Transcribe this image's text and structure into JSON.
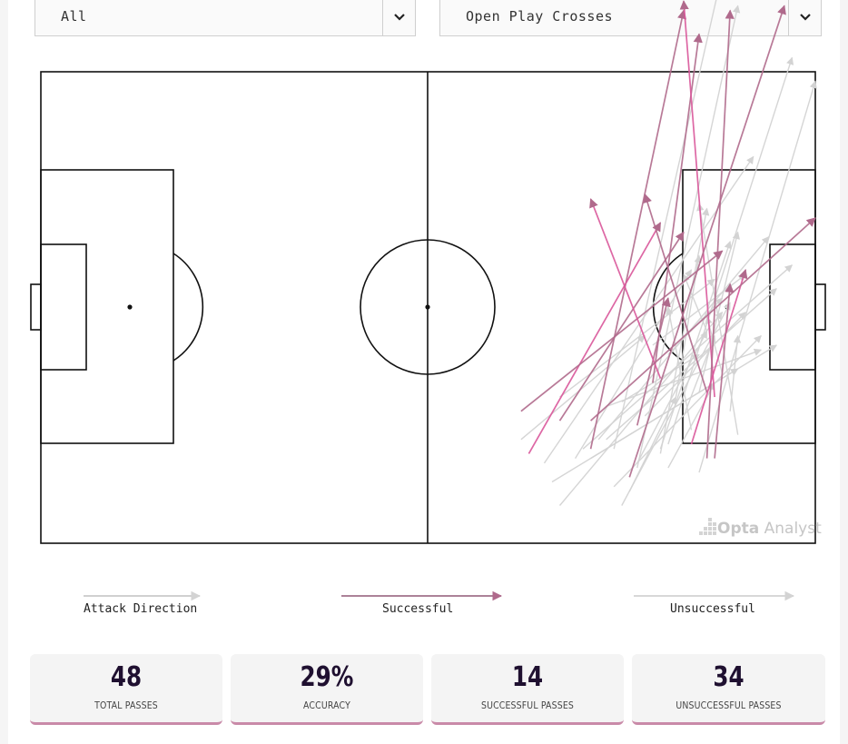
{
  "filters": {
    "left": {
      "value": "All"
    },
    "right": {
      "value": "Open Play Crosses"
    }
  },
  "legend": {
    "attack_direction": "Attack Direction",
    "successful": "Successful",
    "unsuccessful": "Unsuccessful"
  },
  "colors": {
    "successful": "#b06a8c",
    "successful_alt": "#d9569a",
    "unsuccessful": "#d3d3d3",
    "pitch_lines": "#111111",
    "accent_border": "#c98aa8"
  },
  "branding": {
    "logo_text_bold": "Opta",
    "logo_text": "Analyst"
  },
  "stats": [
    {
      "value": "48",
      "label": "TOTAL PASSES"
    },
    {
      "value": "29%",
      "label": "ACCURACY"
    },
    {
      "value": "14",
      "label": "SUCCESSFUL PASSES"
    },
    {
      "value": "34",
      "label": "UNSUCCESSFUL PASSES"
    }
  ],
  "chart_data": {
    "type": "pass-map",
    "pitch": {
      "length": 100,
      "width": 100,
      "attack_direction": "right"
    },
    "passes": [
      {
        "from": [
          71,
          80
        ],
        "to": [
          83,
          -13
        ],
        "outcome": "successful"
      },
      {
        "from": [
          79,
          66
        ],
        "to": [
          85,
          -8
        ],
        "outcome": "successful"
      },
      {
        "from": [
          87,
          69
        ],
        "to": [
          83,
          -15
        ],
        "outcome": "successful"
      },
      {
        "from": [
          86,
          82
        ],
        "to": [
          89,
          -13
        ],
        "outcome": "successful"
      },
      {
        "from": [
          76,
          86
        ],
        "to": [
          96,
          -14
        ],
        "outcome": "successful"
      },
      {
        "from": [
          63,
          81
        ],
        "to": [
          80,
          32
        ],
        "outcome": "successful"
      },
      {
        "from": [
          67,
          74
        ],
        "to": [
          83,
          34
        ],
        "outcome": "successful"
      },
      {
        "from": [
          62,
          72
        ],
        "to": [
          88,
          38
        ],
        "outcome": "successful"
      },
      {
        "from": [
          84,
          79
        ],
        "to": [
          91,
          42
        ],
        "outcome": "successful"
      },
      {
        "from": [
          86,
          68
        ],
        "to": [
          78,
          26
        ],
        "outcome": "successful"
      },
      {
        "from": [
          77,
          75
        ],
        "to": [
          81,
          48
        ],
        "outcome": "successful"
      },
      {
        "from": [
          80,
          65
        ],
        "to": [
          71,
          27
        ],
        "outcome": "successful"
      },
      {
        "from": [
          71,
          74
        ],
        "to": [
          100,
          31
        ],
        "outcome": "successful"
      },
      {
        "from": [
          87,
          82
        ],
        "to": [
          89,
          45
        ],
        "outcome": "successful"
      },
      {
        "from": [
          74,
          80
        ],
        "to": [
          88,
          -21
        ],
        "outcome": "unsuccessful"
      },
      {
        "from": [
          77,
          84
        ],
        "to": [
          90,
          -14
        ],
        "outcome": "unsuccessful"
      },
      {
        "from": [
          81,
          79
        ],
        "to": [
          97,
          -3
        ],
        "outcome": "unsuccessful"
      },
      {
        "from": [
          85,
          85
        ],
        "to": [
          100,
          2
        ],
        "outcome": "unsuccessful"
      },
      {
        "from": [
          65,
          83
        ],
        "to": [
          92,
          18
        ],
        "outcome": "unsuccessful"
      },
      {
        "from": [
          72,
          78
        ],
        "to": [
          94,
          35
        ],
        "outcome": "unsuccessful"
      },
      {
        "from": [
          67,
          92
        ],
        "to": [
          88,
          51
        ],
        "outcome": "unsuccessful"
      },
      {
        "from": [
          70,
          80
        ],
        "to": [
          97,
          41
        ],
        "outcome": "unsuccessful"
      },
      {
        "from": [
          73,
          78
        ],
        "to": [
          95,
          46
        ],
        "outcome": "unsuccessful"
      },
      {
        "from": [
          77,
          83
        ],
        "to": [
          86,
          55
        ],
        "outcome": "unsuccessful"
      },
      {
        "from": [
          78,
          73
        ],
        "to": [
          91,
          51
        ],
        "outcome": "unsuccessful"
      },
      {
        "from": [
          80,
          80
        ],
        "to": [
          89,
          36
        ],
        "outcome": "unsuccessful"
      },
      {
        "from": [
          66,
          87
        ],
        "to": [
          95,
          58
        ],
        "outcome": "unsuccessful"
      },
      {
        "from": [
          71,
          82
        ],
        "to": [
          90,
          63
        ],
        "outcome": "unsuccessful"
      },
      {
        "from": [
          74,
          88
        ],
        "to": [
          93,
          56
        ],
        "outcome": "unsuccessful"
      },
      {
        "from": [
          73,
          71
        ],
        "to": [
          93,
          59
        ],
        "outcome": "unsuccessful"
      },
      {
        "from": [
          62,
          78
        ],
        "to": [
          78,
          56
        ],
        "outcome": "unsuccessful"
      },
      {
        "from": [
          67,
          69
        ],
        "to": [
          87,
          44
        ],
        "outcome": "unsuccessful"
      },
      {
        "from": [
          85,
          68
        ],
        "to": [
          90,
          34
        ],
        "outcome": "unsuccessful"
      },
      {
        "from": [
          81,
          60
        ],
        "to": [
          88,
          48
        ],
        "outcome": "unsuccessful"
      },
      {
        "from": [
          79,
          58
        ],
        "to": [
          91,
          43
        ],
        "outcome": "unsuccessful"
      },
      {
        "from": [
          83,
          73
        ],
        "to": [
          87,
          56
        ],
        "outcome": "unsuccessful"
      },
      {
        "from": [
          75,
          70
        ],
        "to": [
          85,
          60
        ],
        "outcome": "unsuccessful"
      },
      {
        "from": [
          86,
          55
        ],
        "to": [
          83,
          43
        ],
        "outcome": "unsuccessful"
      },
      {
        "from": [
          82,
          69
        ],
        "to": [
          85,
          39
        ],
        "outcome": "unsuccessful"
      },
      {
        "from": [
          88,
          64
        ],
        "to": [
          86,
          52
        ],
        "outcome": "unsuccessful"
      },
      {
        "from": [
          89,
          72
        ],
        "to": [
          90,
          56
        ],
        "outcome": "unsuccessful"
      },
      {
        "from": [
          81,
          84
        ],
        "to": [
          87,
          66
        ],
        "outcome": "unsuccessful"
      },
      {
        "from": [
          76,
          89
        ],
        "to": [
          82,
          69
        ],
        "outcome": "unsuccessful"
      },
      {
        "from": [
          80,
          81
        ],
        "to": [
          86,
          29
        ],
        "outcome": "unsuccessful"
      },
      {
        "from": [
          84,
          76
        ],
        "to": [
          81,
          50
        ],
        "outcome": "unsuccessful"
      },
      {
        "from": [
          90,
          77
        ],
        "to": [
          85,
          28
        ],
        "outcome": "unsuccessful"
      },
      {
        "from": [
          69,
          82
        ],
        "to": [
          84,
          42
        ],
        "outcome": "unsuccessful"
      },
      {
        "from": [
          75,
          92
        ],
        "to": [
          89,
          49
        ],
        "outcome": "unsuccessful"
      }
    ]
  }
}
